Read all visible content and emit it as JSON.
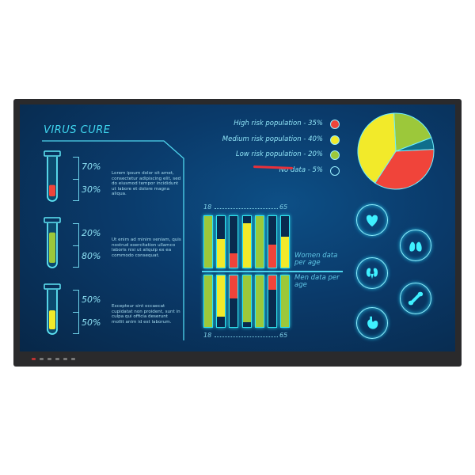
{
  "title": "VIRUS CURE",
  "tubes": [
    {
      "top_pct": "70%",
      "bottom_pct": "30%",
      "fill": 0.3,
      "color": "#f0443a",
      "text": "Lorem ipsum dolor sit amet, consectetur adipiscing elit, sed do eiusmod tempor incididunt ut labore et dolore magna aliqua."
    },
    {
      "top_pct": "20%",
      "bottom_pct": "80%",
      "fill": 0.8,
      "color": "#9cc83a",
      "text": "Ut enim ad minim veniam, quis nostrud exercitation ullamco laboris nisi ut aliquip ex ea commodo consequat."
    },
    {
      "top_pct": "50%",
      "bottom_pct": "50%",
      "fill": 0.5,
      "color": "#f2ea2a",
      "text": "Excepteur sint occaecat cupidatat non proident, sunt in culpa qui officia deserunt mollit anim id est laborum."
    }
  ],
  "chart_data": [
    {
      "type": "pie",
      "legend_placement": "left",
      "slices": [
        {
          "label": "High risk population - 35%",
          "value": 35,
          "color": "#f0443a"
        },
        {
          "label": "Medium risk population - 40%",
          "value": 40,
          "color": "#f2ea2a"
        },
        {
          "label": "Low risk population - 20%",
          "value": 20,
          "color": "#9cc83a"
        },
        {
          "label": "No data - 5%",
          "value": 5,
          "color": "#0f6e8c"
        }
      ]
    },
    {
      "type": "bar",
      "x_start": "18",
      "x_end": "65",
      "series": [
        {
          "name": "Women data per age",
          "values": [
            1.0,
            0.55,
            0.27,
            0.86,
            1.0,
            0.45,
            0.6
          ],
          "colors": [
            "#9cc83a",
            "#f2ea2a",
            "#f0443a",
            "#f2ea2a",
            "#9cc83a",
            "#f0443a",
            "#f2ea2a"
          ]
        },
        {
          "name": "Men data per age",
          "values": [
            1.0,
            0.8,
            0.45,
            0.9,
            1.0,
            0.28,
            1.0
          ],
          "colors": [
            "#9cc83a",
            "#f2ea2a",
            "#f0443a",
            "#9cc83a",
            "#9cc83a",
            "#f0443a",
            "#9cc83a"
          ]
        }
      ]
    }
  ],
  "icons": [
    "heart-icon",
    "lungs-icon",
    "kidneys-icon",
    "bone-icon",
    "stomach-icon"
  ]
}
